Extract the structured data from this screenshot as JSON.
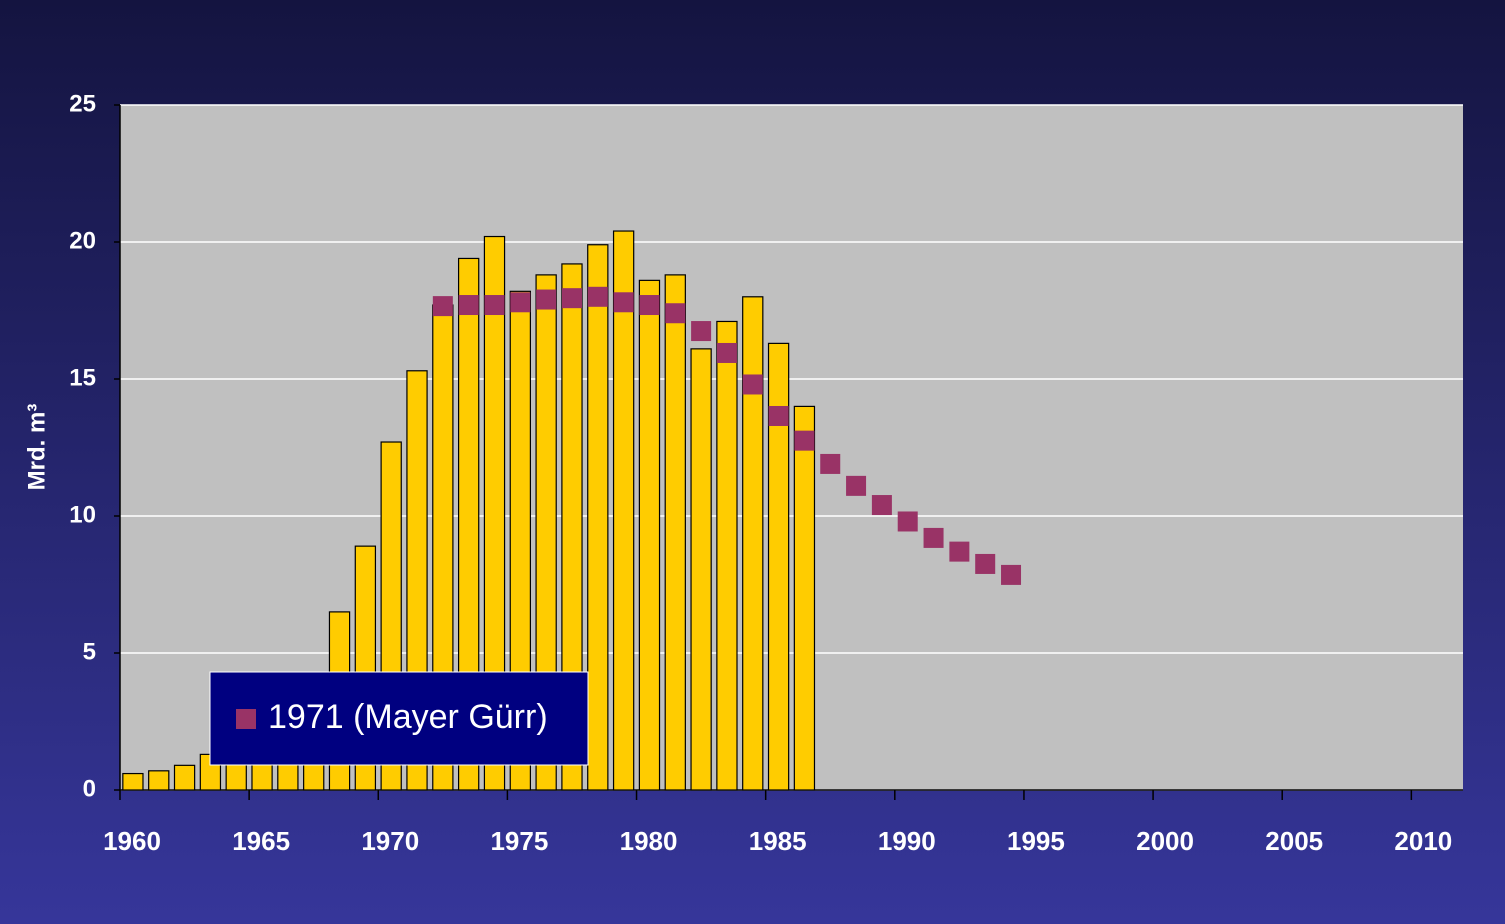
{
  "chart_data": {
    "type": "bar",
    "y_label": "Mrd. m³",
    "x": [
      1960,
      1961,
      1962,
      1963,
      1964,
      1965,
      1966,
      1967,
      1968,
      1969,
      1970,
      1971,
      1972,
      1973,
      1974,
      1975,
      1976,
      1977,
      1978,
      1979,
      1980,
      1981,
      1982,
      1983,
      1984,
      1985,
      1986,
      1987,
      1988,
      1989,
      1990,
      1991,
      1992,
      1993,
      1994
    ],
    "series": [
      {
        "style": "bar",
        "color": "#ffcc00",
        "values": [
          0.6,
          0.7,
          0.9,
          1.3,
          1.6,
          2.2,
          3.0,
          4.3,
          6.5,
          8.9,
          12.7,
          15.3,
          17.7,
          19.4,
          20.2,
          18.2,
          18.8,
          19.2,
          19.9,
          20.4,
          18.6,
          18.8,
          16.1,
          17.1,
          18.0,
          16.3,
          14.0,
          null,
          null,
          null,
          null,
          null,
          null,
          null,
          null
        ]
      },
      {
        "style": "square",
        "name": "1971 (Mayer Gürr)",
        "color": "#993366",
        "values": [
          null,
          null,
          null,
          null,
          null,
          null,
          null,
          null,
          null,
          null,
          null,
          null,
          17.66,
          17.7,
          17.7,
          17.8,
          17.9,
          17.95,
          18.0,
          17.8,
          17.7,
          17.4,
          16.75,
          15.95,
          14.8,
          13.65,
          12.75,
          11.9,
          11.1,
          10.4,
          9.8,
          9.2,
          8.7,
          8.25,
          7.85
        ]
      }
    ],
    "xlim": [
      1960,
      2012
    ],
    "xticks": [
      1960,
      1965,
      1970,
      1975,
      1980,
      1985,
      1990,
      1995,
      2000,
      2005,
      2010
    ],
    "ylim": [
      0,
      25
    ],
    "yticks": [
      0,
      5,
      10,
      15,
      20,
      25
    ],
    "grid": true,
    "legend": "lower left"
  }
}
